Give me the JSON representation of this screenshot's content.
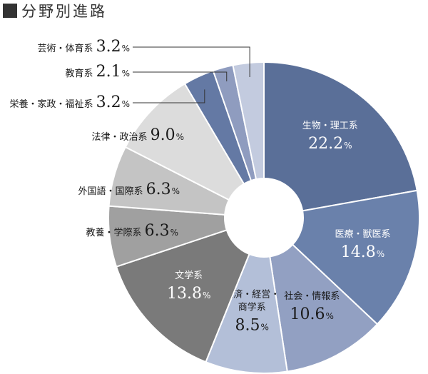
{
  "title": "分野別進路",
  "chart_data": {
    "type": "pie",
    "style": "donut",
    "title": "分野別進路",
    "unit": "%",
    "slices": [
      {
        "label_lines": [
          "生物・理工系"
        ],
        "value": 22.2,
        "color": "#5a6f98",
        "text_color": "#ffffff",
        "label_position": "inside"
      },
      {
        "label_lines": [
          "医療・獣医系"
        ],
        "value": 14.8,
        "color": "#6a81ab",
        "text_color": "#ffffff",
        "label_position": "inside"
      },
      {
        "label_lines": [
          "社会・情報系"
        ],
        "value": 10.6,
        "color": "#92a0c2",
        "text_color": "#1a1a1a",
        "label_position": "inside"
      },
      {
        "label_lines": [
          "経済・経営・",
          "商学系"
        ],
        "value": 8.5,
        "color": "#b3bfd8",
        "text_color": "#1a1a1a",
        "label_position": "inside"
      },
      {
        "label_lines": [
          "文学系"
        ],
        "value": 13.8,
        "color": "#7a7a7a",
        "text_color": "#ffffff",
        "label_position": "inside"
      },
      {
        "label_lines": [
          "教養・学際系"
        ],
        "value": 6.3,
        "color": "#a0a0a0",
        "text_color": "#1a1a1a",
        "label_position": "outside"
      },
      {
        "label_lines": [
          "外国語・国際系"
        ],
        "value": 6.3,
        "color": "#c4c4c4",
        "text_color": "#1a1a1a",
        "label_position": "outside"
      },
      {
        "label_lines": [
          "法律・政治系"
        ],
        "value": 9.0,
        "color": "#dcdcdc",
        "text_color": "#1a1a1a",
        "label_position": "outside"
      },
      {
        "label_lines": [
          "栄養・家政・福祉系"
        ],
        "value": 3.2,
        "color": "#6479a4",
        "text_color": "#1a1a1a",
        "label_position": "callout"
      },
      {
        "label_lines": [
          "教育系"
        ],
        "value": 2.1,
        "color": "#8f9cbf",
        "text_color": "#1a1a1a",
        "label_position": "callout"
      },
      {
        "label_lines": [
          "芸術・体育系"
        ],
        "value": 3.2,
        "color": "#c3cbdf",
        "text_color": "#1a1a1a",
        "label_position": "callout"
      }
    ]
  }
}
